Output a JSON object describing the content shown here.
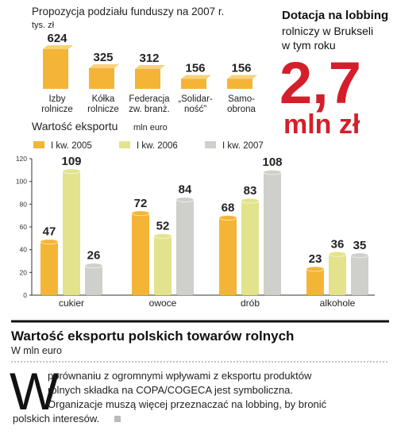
{
  "chart_data": [
    {
      "type": "bar",
      "title": "Propozycja podziału funduszy na 2007 r.",
      "unit": "tys. zł",
      "categories": [
        [
          "Izby",
          "rolnicze"
        ],
        [
          "Kółka",
          "rolnicze"
        ],
        [
          "Federacja",
          "zw. branż."
        ],
        [
          "„Solidar-",
          "ność”"
        ],
        [
          "Samo-",
          "obrona"
        ]
      ],
      "values": [
        624,
        325,
        312,
        156,
        156
      ],
      "color": "#f4b436"
    },
    {
      "type": "grouped-bar",
      "title": "Wartość eksportu",
      "unit": "mln euro",
      "categories": [
        "cukier",
        "owoce",
        "drób",
        "alkohole"
      ],
      "series": [
        {
          "name": "I kw. 2005",
          "color": "#f4b436",
          "values": [
            47,
            72,
            68,
            23
          ]
        },
        {
          "name": "I kw. 2006",
          "color": "#e2e38c",
          "values": [
            109,
            52,
            83,
            36
          ]
        },
        {
          "name": "I kw. 2007",
          "color": "#cfcfcb",
          "values": [
            26,
            84,
            108,
            35
          ]
        }
      ],
      "ylim": [
        0,
        120
      ],
      "yticks": [
        0,
        20,
        40,
        60,
        80,
        100,
        120
      ],
      "grid": false
    }
  ],
  "sidebar": {
    "lines": [
      "Dotacja na lobbing",
      "rolniczy w Brukseli",
      "w tym roku"
    ],
    "amount": "2,7",
    "unit": "mln zł"
  },
  "footer": {
    "title": "Wartość eksportu polskich towarów rolnych",
    "subtitle": "W mln euro",
    "dropcap": "W",
    "lines": [
      "porównaniu z ogromnymi wpływami z eksportu produktów",
      "rolnych składka na COPA/COGECA jest symboliczna.",
      "Organizacje muszą więcej przeznaczać na lobbing, by bronić",
      "polskich interesów."
    ]
  }
}
